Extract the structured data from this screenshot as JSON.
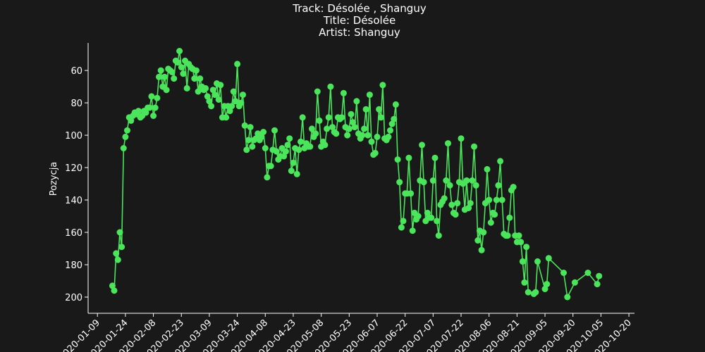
{
  "chart_data": {
    "type": "line",
    "title_lines": [
      "Track:  Désolée  , Shanguy",
      "Title:  Désolée",
      "Artist:  Shanguy"
    ],
    "xlabel": "",
    "ylabel": "Pozycja",
    "y_inverted": true,
    "ylim": [
      210,
      43
    ],
    "y_ticks": [
      60,
      80,
      100,
      120,
      140,
      160,
      180,
      200
    ],
    "x_ticks": [
      "2020-01-09",
      "2020-01-24",
      "2020-02-08",
      "2020-02-23",
      "2020-03-09",
      "2020-03-24",
      "2020-04-08",
      "2020-04-23",
      "2020-05-08",
      "2020-05-23",
      "2020-06-07",
      "2020-06-22",
      "2020-07-07",
      "2020-07-22",
      "2020-08-06",
      "2020-08-21",
      "2020-09-05",
      "2020-09-20",
      "2020-10-05",
      "2020-10-20"
    ],
    "xlim": [
      "2020-01-04",
      "2020-10-23"
    ],
    "grid": false,
    "series": [
      {
        "color": "#4be55c",
        "marker": "circle",
        "points": [
          [
            "2020-01-17",
            193
          ],
          [
            "2020-01-18",
            196
          ],
          [
            "2020-01-19",
            173
          ],
          [
            "2020-01-20",
            177
          ],
          [
            "2020-01-21",
            160
          ],
          [
            "2020-01-22",
            169
          ],
          [
            "2020-01-23",
            108
          ],
          [
            "2020-01-24",
            101
          ],
          [
            "2020-01-25",
            97
          ],
          [
            "2020-01-26",
            89
          ],
          [
            "2020-01-27",
            91
          ],
          [
            "2020-01-28",
            88
          ],
          [
            "2020-01-29",
            86
          ],
          [
            "2020-01-30",
            87
          ],
          [
            "2020-01-31",
            85
          ],
          [
            "2020-02-01",
            89
          ],
          [
            "2020-02-02",
            88
          ],
          [
            "2020-02-03",
            85
          ],
          [
            "2020-02-04",
            86
          ],
          [
            "2020-02-05",
            83
          ],
          [
            "2020-02-06",
            83
          ],
          [
            "2020-02-07",
            76
          ],
          [
            "2020-02-08",
            88
          ],
          [
            "2020-02-09",
            83
          ],
          [
            "2020-02-10",
            77
          ],
          [
            "2020-02-11",
            64
          ],
          [
            "2020-02-12",
            60
          ],
          [
            "2020-02-13",
            70
          ],
          [
            "2020-02-14",
            64
          ],
          [
            "2020-02-15",
            72
          ],
          [
            "2020-02-16",
            59
          ],
          [
            "2020-02-17",
            60
          ],
          [
            "2020-02-18",
            61
          ],
          [
            "2020-02-19",
            65
          ],
          [
            "2020-02-20",
            54
          ],
          [
            "2020-02-21",
            55
          ],
          [
            "2020-02-22",
            48
          ],
          [
            "2020-02-23",
            58
          ],
          [
            "2020-02-24",
            62
          ],
          [
            "2020-02-25",
            54
          ],
          [
            "2020-02-26",
            71
          ],
          [
            "2020-02-27",
            56
          ],
          [
            "2020-02-28",
            58
          ],
          [
            "2020-02-29",
            59
          ],
          [
            "2020-03-01",
            65
          ],
          [
            "2020-03-02",
            60
          ],
          [
            "2020-03-03",
            73
          ],
          [
            "2020-03-04",
            65
          ],
          [
            "2020-03-05",
            70
          ],
          [
            "2020-03-06",
            72
          ],
          [
            "2020-03-07",
            71
          ],
          [
            "2020-03-08",
            76
          ],
          [
            "2020-03-09",
            79
          ],
          [
            "2020-03-10",
            82
          ],
          [
            "2020-03-11",
            72
          ],
          [
            "2020-03-12",
            75
          ],
          [
            "2020-03-13",
            68
          ],
          [
            "2020-03-14",
            78
          ],
          [
            "2020-03-15",
            69
          ],
          [
            "2020-03-16",
            89
          ],
          [
            "2020-03-17",
            82
          ],
          [
            "2020-03-18",
            89
          ],
          [
            "2020-03-19",
            82
          ],
          [
            "2020-03-20",
            85
          ],
          [
            "2020-03-21",
            82
          ],
          [
            "2020-03-22",
            73
          ],
          [
            "2020-03-23",
            79
          ],
          [
            "2020-03-24",
            56
          ],
          [
            "2020-03-25",
            82
          ],
          [
            "2020-03-26",
            80
          ],
          [
            "2020-03-27",
            75
          ],
          [
            "2020-03-28",
            94
          ],
          [
            "2020-03-29",
            109
          ],
          [
            "2020-03-30",
            103
          ],
          [
            "2020-03-31",
            95
          ],
          [
            "2020-04-01",
            107
          ],
          [
            "2020-04-02",
            103
          ],
          [
            "2020-04-03",
            102
          ],
          [
            "2020-04-04",
            99
          ],
          [
            "2020-04-05",
            103
          ],
          [
            "2020-04-06",
            101
          ],
          [
            "2020-04-07",
            98
          ],
          [
            "2020-04-08",
            108
          ],
          [
            "2020-04-09",
            126
          ],
          [
            "2020-04-10",
            119
          ],
          [
            "2020-04-11",
            119
          ],
          [
            "2020-04-12",
            109
          ],
          [
            "2020-04-13",
            97
          ],
          [
            "2020-04-14",
            110
          ],
          [
            "2020-04-15",
            115
          ],
          [
            "2020-04-16",
            113
          ],
          [
            "2020-04-17",
            108
          ],
          [
            "2020-04-18",
            113
          ],
          [
            "2020-04-19",
            110
          ],
          [
            "2020-04-20",
            106
          ],
          [
            "2020-04-21",
            102
          ],
          [
            "2020-04-22",
            122
          ],
          [
            "2020-04-23",
            117
          ],
          [
            "2020-04-24",
            108
          ],
          [
            "2020-04-25",
            124
          ],
          [
            "2020-04-26",
            109
          ],
          [
            "2020-04-27",
            104
          ],
          [
            "2020-04-28",
            89
          ],
          [
            "2020-04-29",
            108
          ],
          [
            "2020-04-30",
            105
          ],
          [
            "2020-05-01",
            107
          ],
          [
            "2020-05-02",
            107
          ],
          [
            "2020-05-03",
            96
          ],
          [
            "2020-05-04",
            101
          ],
          [
            "2020-05-05",
            99
          ],
          [
            "2020-05-06",
            73
          ],
          [
            "2020-05-07",
            91
          ],
          [
            "2020-05-08",
            107
          ],
          [
            "2020-05-09",
            104
          ],
          [
            "2020-05-10",
            106
          ],
          [
            "2020-05-11",
            96
          ],
          [
            "2020-05-12",
            89
          ],
          [
            "2020-05-13",
            70
          ],
          [
            "2020-05-14",
            95
          ],
          [
            "2020-05-15",
            98
          ],
          [
            "2020-05-16",
            99
          ],
          [
            "2020-05-17",
            89
          ],
          [
            "2020-05-18",
            90
          ],
          [
            "2020-05-19",
            89
          ],
          [
            "2020-05-20",
            74
          ],
          [
            "2020-05-21",
            95
          ],
          [
            "2020-05-22",
            100
          ],
          [
            "2020-05-23",
            96
          ],
          [
            "2020-05-24",
            87
          ],
          [
            "2020-05-25",
            92
          ],
          [
            "2020-05-26",
            95
          ],
          [
            "2020-05-27",
            79
          ],
          [
            "2020-05-28",
            99
          ],
          [
            "2020-05-29",
            102
          ],
          [
            "2020-05-30",
            100
          ],
          [
            "2020-05-31",
            96
          ],
          [
            "2020-06-01",
            84
          ],
          [
            "2020-06-02",
            100
          ],
          [
            "2020-06-03",
            75
          ],
          [
            "2020-06-04",
            104
          ],
          [
            "2020-06-05",
            112
          ],
          [
            "2020-06-06",
            111
          ],
          [
            "2020-06-07",
            101
          ],
          [
            "2020-06-08",
            84
          ],
          [
            "2020-06-09",
            89
          ],
          [
            "2020-06-10",
            69
          ],
          [
            "2020-06-11",
            102
          ],
          [
            "2020-06-12",
            103
          ],
          [
            "2020-06-13",
            101
          ],
          [
            "2020-06-14",
            97
          ],
          [
            "2020-06-15",
            93
          ],
          [
            "2020-06-16",
            90
          ],
          [
            "2020-06-17",
            81
          ],
          [
            "2020-06-18",
            115
          ],
          [
            "2020-06-19",
            129
          ],
          [
            "2020-06-20",
            157
          ],
          [
            "2020-06-21",
            153
          ],
          [
            "2020-06-22",
            136
          ],
          [
            "2020-06-23",
            136
          ],
          [
            "2020-06-24",
            114
          ],
          [
            "2020-06-25",
            136
          ],
          [
            "2020-06-26",
            159
          ],
          [
            "2020-06-27",
            148
          ],
          [
            "2020-06-28",
            152
          ],
          [
            "2020-06-29",
            150
          ],
          [
            "2020-06-30",
            128
          ],
          [
            "2020-07-01",
            106
          ],
          [
            "2020-07-02",
            129
          ],
          [
            "2020-07-03",
            153
          ],
          [
            "2020-07-04",
            148
          ],
          [
            "2020-07-05",
            151
          ],
          [
            "2020-07-06",
            151
          ],
          [
            "2020-07-07",
            128
          ],
          [
            "2020-07-08",
            114
          ],
          [
            "2020-07-09",
            153
          ],
          [
            "2020-07-10",
            162
          ],
          [
            "2020-07-11",
            143
          ],
          [
            "2020-07-12",
            141
          ],
          [
            "2020-07-13",
            139
          ],
          [
            "2020-07-14",
            128
          ],
          [
            "2020-07-15",
            105
          ],
          [
            "2020-07-16",
            131
          ],
          [
            "2020-07-17",
            143
          ],
          [
            "2020-07-18",
            148
          ],
          [
            "2020-07-19",
            149
          ],
          [
            "2020-07-20",
            142
          ],
          [
            "2020-07-21",
            129
          ],
          [
            "2020-07-22",
            102
          ],
          [
            "2020-07-23",
            130
          ],
          [
            "2020-07-24",
            146
          ],
          [
            "2020-07-25",
            128
          ],
          [
            "2020-07-26",
            145
          ],
          [
            "2020-07-27",
            142
          ],
          [
            "2020-07-28",
            128
          ],
          [
            "2020-07-29",
            107
          ],
          [
            "2020-07-30",
            131
          ],
          [
            "2020-07-31",
            165
          ],
          [
            "2020-08-01",
            159
          ],
          [
            "2020-08-02",
            171
          ],
          [
            "2020-08-03",
            160
          ],
          [
            "2020-08-04",
            142
          ],
          [
            "2020-08-05",
            121
          ],
          [
            "2020-08-06",
            140
          ],
          [
            "2020-08-07",
            154
          ],
          [
            "2020-08-08",
            148
          ],
          [
            "2020-08-09",
            149
          ],
          [
            "2020-08-10",
            140
          ],
          [
            "2020-08-11",
            131
          ],
          [
            "2020-08-12",
            116
          ],
          [
            "2020-08-13",
            140
          ],
          [
            "2020-08-14",
            161
          ],
          [
            "2020-08-15",
            162
          ],
          [
            "2020-08-16",
            162
          ],
          [
            "2020-08-17",
            151
          ],
          [
            "2020-08-18",
            134
          ],
          [
            "2020-08-19",
            132
          ],
          [
            "2020-08-20",
            162
          ],
          [
            "2020-08-21",
            166
          ],
          [
            "2020-08-22",
            162
          ],
          [
            "2020-08-23",
            166
          ],
          [
            "2020-08-24",
            178
          ],
          [
            "2020-08-25",
            191
          ],
          [
            "2020-08-26",
            169
          ],
          [
            "2020-08-27",
            197
          ],
          [
            "2020-08-30",
            198
          ],
          [
            "2020-08-31",
            197
          ],
          [
            "2020-09-01",
            178
          ],
          [
            "2020-09-05",
            195
          ],
          [
            "2020-09-06",
            192
          ],
          [
            "2020-09-07",
            176
          ],
          [
            "2020-09-15",
            185
          ],
          [
            "2020-09-17",
            200
          ],
          [
            "2020-09-21",
            191
          ],
          [
            "2020-09-28",
            185
          ],
          [
            "2020-10-03",
            192
          ],
          [
            "2020-10-04",
            187
          ]
        ]
      }
    ]
  }
}
